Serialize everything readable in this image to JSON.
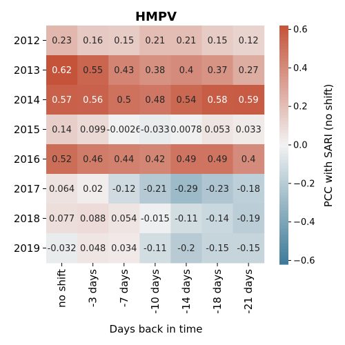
{
  "chart_data": {
    "type": "heatmap",
    "title": "HMPV",
    "xlabel": "Days back in time",
    "ylabel": "",
    "colorbar_label": "PCC with SARI (no shift)",
    "x_categories": [
      "no shift",
      "-3 days",
      "-7 days",
      "-10 days",
      "-14 days",
      "-18 days",
      "-21 days"
    ],
    "y_categories": [
      "2012",
      "2013",
      "2014",
      "2015",
      "2016",
      "2017",
      "2018",
      "2019"
    ],
    "values": [
      [
        0.23,
        0.16,
        0.15,
        0.21,
        0.21,
        0.15,
        0.12
      ],
      [
        0.62,
        0.55,
        0.43,
        0.38,
        0.4,
        0.37,
        0.27
      ],
      [
        0.57,
        0.56,
        0.5,
        0.48,
        0.54,
        0.58,
        0.59
      ],
      [
        0.14,
        0.099,
        -0.0026,
        -0.033,
        0.0078,
        0.053,
        0.033
      ],
      [
        0.52,
        0.46,
        0.44,
        0.42,
        0.49,
        0.49,
        0.4
      ],
      [
        0.064,
        0.02,
        -0.12,
        -0.21,
        -0.29,
        -0.23,
        -0.18
      ],
      [
        0.077,
        0.088,
        0.054,
        -0.015,
        -0.11,
        -0.14,
        -0.19
      ],
      [
        -0.032,
        0.048,
        0.034,
        -0.11,
        -0.2,
        -0.15,
        -0.15
      ]
    ],
    "cell_labels": [
      [
        "0.23",
        "0.16",
        "0.15",
        "0.21",
        "0.21",
        "0.15",
        "0.12"
      ],
      [
        "0.62",
        "0.55",
        "0.43",
        "0.38",
        "0.4",
        "0.37",
        "0.27"
      ],
      [
        "0.57",
        "0.56",
        "0.5",
        "0.48",
        "0.54",
        "0.58",
        "0.59"
      ],
      [
        "0.14",
        "0.099",
        "-0.0026",
        "-0.033",
        "0.0078",
        "0.053",
        "0.033"
      ],
      [
        "0.52",
        "0.46",
        "0.44",
        "0.42",
        "0.49",
        "0.49",
        "0.4"
      ],
      [
        "0.064",
        "0.02",
        "-0.12",
        "-0.21",
        "-0.29",
        "-0.23",
        "-0.18"
      ],
      [
        "0.077",
        "0.088",
        "0.054",
        "-0.015",
        "-0.11",
        "-0.14",
        "-0.19"
      ],
      [
        "-0.032",
        "0.048",
        "0.034",
        "-0.11",
        "-0.2",
        "-0.15",
        "-0.15"
      ]
    ],
    "colorbar_range": [
      -0.62,
      0.62
    ],
    "colorbar_ticks": [
      0.6,
      0.4,
      0.2,
      0.0,
      -0.2,
      -0.4,
      -0.6
    ],
    "colorbar_tick_labels": [
      "0.6",
      "0.4",
      "0.2",
      "0.0",
      "−0.2",
      "−0.4",
      "−0.6"
    ],
    "colormap": {
      "negative_end": "#3d7a98",
      "center": "#f2f2f2",
      "positive_end": "#c5533a"
    },
    "grid": false,
    "colorbar_position": "right"
  }
}
